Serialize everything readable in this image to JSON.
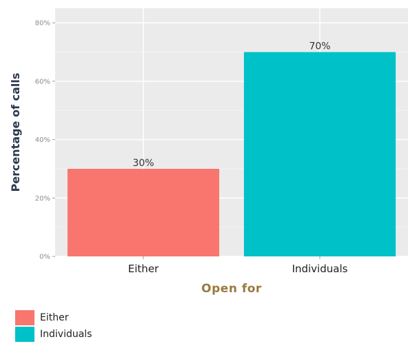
{
  "chart_data": {
    "type": "bar",
    "categories": [
      "Either",
      "Individuals"
    ],
    "values": [
      30,
      70
    ],
    "data_labels": [
      "30%",
      "70%"
    ],
    "xlabel": "Open for",
    "ylabel": "Percentage of calls",
    "ylim": [
      0,
      85
    ],
    "yticks": [
      0,
      20,
      40,
      60,
      80
    ],
    "ytick_labels": [
      "0%",
      "20%",
      "40%",
      "60%",
      "80%"
    ],
    "grid": true,
    "legend_placement": "bottom-left",
    "colors": [
      "#f8766d",
      "#00c0c8"
    ],
    "panel_background": "#ebebeb",
    "legend": [
      {
        "label": "Either",
        "color": "#f8766d"
      },
      {
        "label": "Individuals",
        "color": "#00c0c8"
      }
    ]
  }
}
